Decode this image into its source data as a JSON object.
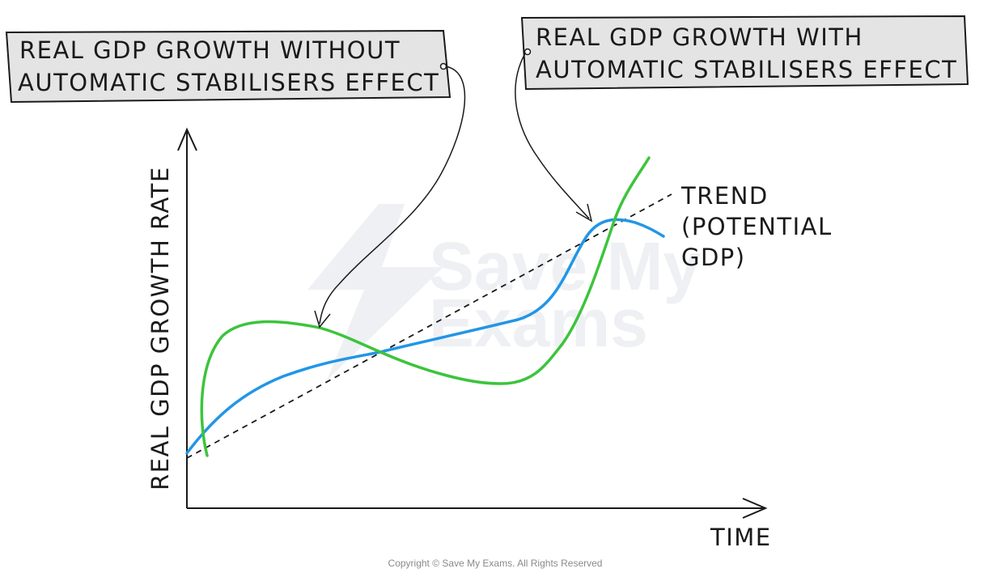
{
  "diagram": {
    "axes": {
      "y_label": "REAL GDP GROWTH RATE",
      "x_label": "TIME"
    },
    "curves": [
      {
        "id": "trend",
        "label_lines": [
          "TREND",
          "(POTENTIAL",
          "GDP)"
        ],
        "color": "#1a1a1a",
        "style": "dashed"
      },
      {
        "id": "with-stabilisers",
        "color": "#2196e6",
        "style": "solid"
      },
      {
        "id": "without-stabilisers",
        "color": "#3cc43c",
        "style": "solid"
      }
    ],
    "callouts": {
      "without": {
        "line1": "REAL GDP GROWTH WITHOUT",
        "line2": "AUTOMATIC STABILISERS EFFECT"
      },
      "with": {
        "line1": "REAL GDP GROWTH WITH",
        "line2": "AUTOMATIC STABILISERS EFFECT"
      }
    },
    "watermark": {
      "line1": "Save My",
      "line2": "Exams"
    },
    "copyright": "Copyright © Save My Exams. All Rights Reserved"
  }
}
